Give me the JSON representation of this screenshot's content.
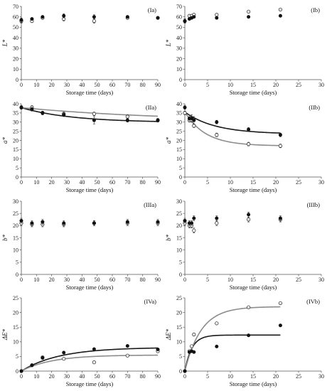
{
  "chart_data": [
    {
      "panel": "(Ia)",
      "type": "scatter",
      "xlabel": "Storage time (days)",
      "ylabel": "L*",
      "xlim": [
        0,
        90
      ],
      "xticks": [
        0,
        10,
        20,
        30,
        40,
        50,
        60,
        70,
        80,
        90
      ],
      "ylim": [
        0,
        70
      ],
      "yticks": [
        0,
        10,
        20,
        30,
        40,
        50,
        60,
        70
      ],
      "series": [
        {
          "marker": "filled",
          "x": [
            0,
            7,
            14,
            28,
            48,
            70,
            90
          ],
          "y": [
            57,
            58,
            60,
            61,
            60,
            60,
            59
          ],
          "err": [
            2,
            1,
            1,
            2,
            2,
            1,
            1
          ]
        },
        {
          "marker": "open",
          "x": [
            0,
            7,
            14,
            28,
            48,
            70,
            90
          ],
          "y": [
            56,
            56,
            59,
            58,
            56,
            59,
            59
          ],
          "err": [
            2,
            1,
            1,
            2,
            2,
            1,
            1
          ]
        }
      ],
      "curves": []
    },
    {
      "panel": "(Ib)",
      "type": "scatter",
      "xlabel": "Storage time (days)",
      "ylabel": "L*",
      "xlim": [
        0,
        30
      ],
      "xticks": [
        0,
        5,
        10,
        15,
        20,
        25,
        30
      ],
      "ylim": [
        0,
        70
      ],
      "yticks": [
        0,
        10,
        20,
        30,
        40,
        50,
        60,
        70
      ],
      "series": [
        {
          "marker": "filled",
          "x": [
            0,
            1,
            1.5,
            2,
            7,
            14,
            21
          ],
          "y": [
            56,
            58,
            59,
            60,
            59,
            60,
            61
          ],
          "err": [
            2,
            1,
            1,
            1,
            1,
            1,
            1
          ]
        },
        {
          "marker": "open",
          "x": [
            0,
            1,
            1.5,
            2,
            7,
            14,
            21
          ],
          "y": [
            56,
            61,
            61,
            62,
            62,
            65,
            67
          ],
          "err": [
            2,
            1,
            1,
            1,
            1,
            1,
            1
          ]
        }
      ],
      "curves": []
    },
    {
      "panel": "(IIa)",
      "type": "scatter",
      "xlabel": "Storage time (days)",
      "ylabel": "a*",
      "xlim": [
        0,
        90
      ],
      "xticks": [
        0,
        10,
        20,
        30,
        40,
        50,
        60,
        70,
        80,
        90
      ],
      "ylim": [
        0,
        40
      ],
      "yticks": [
        0,
        5,
        10,
        15,
        20,
        25,
        30,
        35,
        40
      ],
      "series": [
        {
          "marker": "filled",
          "x": [
            0,
            7,
            14,
            28,
            48,
            70,
            90
          ],
          "y": [
            38,
            37,
            35,
            34,
            31,
            31,
            31
          ],
          "err": [
            1,
            1,
            1,
            1,
            2,
            1,
            1
          ]
        },
        {
          "marker": "open",
          "x": [
            0,
            7,
            14,
            28,
            48,
            70,
            90
          ],
          "y": [
            38,
            38,
            35,
            34.5,
            34.5,
            33,
            31
          ],
          "err": [
            1,
            1,
            1,
            1,
            1,
            1,
            1
          ]
        }
      ],
      "curves": [
        {
          "color": "#1a1a1a",
          "kind": "exp",
          "y0": 37.9,
          "yinf": 29.8,
          "k": 0.03
        },
        {
          "color": "#8c8c8c",
          "kind": "exp",
          "y0": 37.9,
          "yinf": 30.0,
          "k": 0.01
        }
      ]
    },
    {
      "panel": "(IIb)",
      "type": "scatter",
      "xlabel": "Storage time (days)",
      "ylabel": "a*",
      "xlim": [
        0,
        30
      ],
      "xticks": [
        0,
        5,
        10,
        15,
        20,
        25,
        30
      ],
      "ylim": [
        0,
        40
      ],
      "yticks": [
        0,
        5,
        10,
        15,
        20,
        25,
        30,
        35,
        40
      ],
      "series": [
        {
          "marker": "filled",
          "x": [
            0,
            1,
            1.5,
            2,
            7,
            14,
            21
          ],
          "y": [
            38,
            32,
            32,
            31,
            30,
            26,
            23
          ],
          "err": [
            1,
            1,
            2,
            2,
            1,
            1,
            1
          ]
        },
        {
          "marker": "open",
          "x": [
            0,
            1,
            1.5,
            2,
            7,
            14,
            21
          ],
          "y": [
            35,
            31,
            31,
            28,
            23,
            18,
            17
          ],
          "err": [
            1,
            1,
            1,
            1,
            1,
            1,
            1
          ]
        }
      ],
      "curves": [
        {
          "color": "#1a1a1a",
          "kind": "exp",
          "y0": 35.5,
          "yinf": 23.5,
          "k": 0.15
        },
        {
          "color": "#8c8c8c",
          "kind": "exp",
          "y0": 35.5,
          "yinf": 17.0,
          "k": 0.22
        }
      ]
    },
    {
      "panel": "(IIIa)",
      "type": "scatter",
      "xlabel": "Storage time (days)",
      "ylabel": "b*",
      "xlim": [
        0,
        90
      ],
      "xticks": [
        0,
        10,
        20,
        30,
        40,
        50,
        60,
        70,
        80,
        90
      ],
      "ylim": [
        0,
        30
      ],
      "yticks": [
        0,
        5,
        10,
        15,
        20,
        25,
        30
      ],
      "series": [
        {
          "marker": "filled",
          "x": [
            0,
            7,
            14,
            28,
            48,
            70,
            90
          ],
          "y": [
            22,
            21,
            21.5,
            21,
            21,
            21.5,
            21.5
          ],
          "err": [
            1,
            1,
            1,
            1,
            1,
            1,
            1
          ]
        },
        {
          "marker": "open",
          "x": [
            0,
            7,
            14,
            28,
            48,
            70,
            90
          ],
          "y": [
            21,
            20.5,
            20.5,
            20.5,
            21,
            21,
            21
          ],
          "err": [
            1,
            1,
            1,
            1,
            1,
            1,
            1
          ]
        }
      ],
      "curves": []
    },
    {
      "panel": "(IIIb)",
      "type": "scatter",
      "xlabel": "Storage time (days)",
      "ylabel": "b*",
      "xlim": [
        0,
        30
      ],
      "xticks": [
        0,
        5,
        10,
        15,
        20,
        25,
        30
      ],
      "ylim": [
        0,
        30
      ],
      "yticks": [
        0,
        5,
        10,
        15,
        20,
        25,
        30
      ],
      "series": [
        {
          "marker": "filled",
          "x": [
            0,
            1,
            1.5,
            2,
            7,
            14,
            21
          ],
          "y": [
            22,
            21,
            21,
            23,
            23,
            24.5,
            23
          ],
          "err": [
            1,
            1,
            1,
            1,
            1,
            1,
            1
          ]
        },
        {
          "marker": "open",
          "x": [
            0,
            1,
            1.5,
            2,
            7,
            14,
            21
          ],
          "y": [
            21,
            20,
            20,
            18,
            21,
            22.5,
            22.5
          ],
          "err": [
            1,
            1,
            1,
            1,
            1,
            1,
            1
          ]
        }
      ],
      "curves": []
    },
    {
      "panel": "(IVa)",
      "type": "scatter",
      "xlabel": "Storage time (days)",
      "ylabel": "ΔE*",
      "xlim": [
        0,
        90
      ],
      "xticks": [
        0,
        10,
        20,
        30,
        40,
        50,
        60,
        70,
        80,
        90
      ],
      "ylim": [
        0,
        25
      ],
      "yticks": [
        0,
        5,
        10,
        15,
        20,
        25
      ],
      "series": [
        {
          "marker": "filled",
          "x": [
            0,
            7,
            14,
            28,
            48,
            70,
            90
          ],
          "y": [
            0,
            2,
            4.5,
            6.3,
            7.5,
            8.6,
            7.4
          ],
          "err": []
        },
        {
          "marker": "open",
          "x": [
            0,
            7,
            14,
            28,
            48,
            70,
            90
          ],
          "y": [
            0,
            2,
            4.7,
            4.2,
            3.0,
            5.3,
            6.8
          ],
          "err": []
        }
      ],
      "curves": [
        {
          "color": "#1a1a1a",
          "kind": "growth",
          "ymax": 8.1,
          "k": 0.04
        },
        {
          "color": "#8c8c8c",
          "kind": "growth",
          "ymax": 5.5,
          "k": 0.05
        }
      ]
    },
    {
      "panel": "(IVb)",
      "type": "scatter",
      "xlabel": "Storage time (days)",
      "ylabel": "ΔE*",
      "xlim": [
        0,
        30
      ],
      "xticks": [
        0,
        5,
        10,
        15,
        20,
        25,
        30
      ],
      "ylim": [
        0,
        25
      ],
      "yticks": [
        0,
        5,
        10,
        15,
        20,
        25
      ],
      "series": [
        {
          "marker": "filled",
          "x": [
            0,
            1,
            1.5,
            2,
            7,
            14,
            21
          ],
          "y": [
            0,
            6.5,
            6.8,
            6.5,
            8.4,
            12.2,
            15.6
          ],
          "err": []
        },
        {
          "marker": "open",
          "x": [
            0,
            1,
            1.5,
            2,
            7,
            14,
            21
          ],
          "y": [
            0,
            6.8,
            8.5,
            12.5,
            16.3,
            21.8,
            23.2
          ],
          "err": []
        }
      ],
      "curves": [
        {
          "color": "#1a1a1a",
          "kind": "growth",
          "ymax": 12.3,
          "k": 0.65
        },
        {
          "color": "#8c8c8c",
          "kind": "growth",
          "ymax": 22.0,
          "k": 0.28
        }
      ]
    }
  ]
}
